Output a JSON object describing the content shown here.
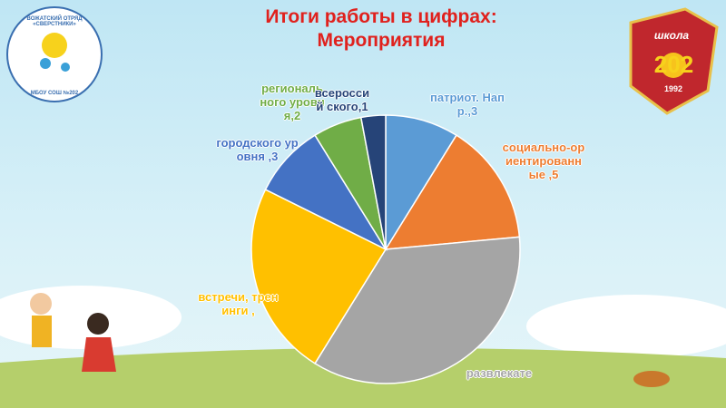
{
  "header": {
    "title": "Итоги работы в цифрах: Мероприятия"
  },
  "logos": {
    "left": {
      "top": "ВОЖАТСКИЙ ОТРЯД «СВЕРСТНИКИ»",
      "bottom": "МБОУ СОШ №202"
    },
    "right": {
      "word": "школа",
      "number": "202",
      "year": "1992"
    }
  },
  "chart_data": {
    "type": "pie",
    "categories": [
      "патриот. Напр.,3",
      "социально-ориентированные ,5",
      "развлекате",
      "встречи, тренинги ,",
      "городского уровня ,3",
      "региональ ного уровня,2",
      "всероссий ского,1"
    ],
    "values": [
      3,
      5,
      12,
      8,
      3,
      2,
      1
    ],
    "colors": [
      "#5b9bd5",
      "#ed7d31",
      "#a5a5a5",
      "#ffc000",
      "#4472c4",
      "#70ad47",
      "#264478"
    ]
  }
}
